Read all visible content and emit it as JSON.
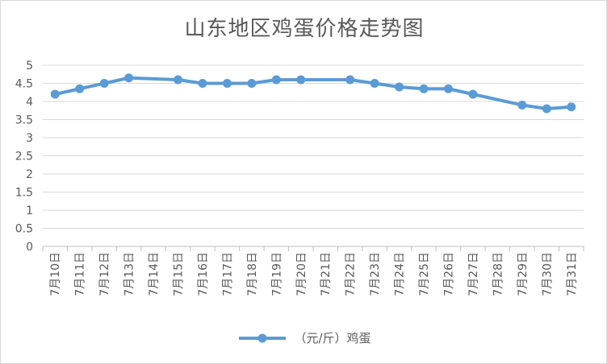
{
  "chart_data": {
    "type": "line",
    "title": "山东地区鸡蛋价格走势图",
    "categories": [
      "7月10日",
      "7月11日",
      "7月12日",
      "7月13日",
      "7月14日",
      "7月15日",
      "7月16日",
      "7月17日",
      "7月18日",
      "7月19日",
      "7月20日",
      "7月21日",
      "7月22日",
      "7月23日",
      "7月24日",
      "7月25日",
      "7月26日",
      "7月27日",
      "7月28日",
      "7月29日",
      "7月30日",
      "7月31日"
    ],
    "series": [
      {
        "name": "（元/斤）鸡蛋",
        "color": "#5b9bd5",
        "values": [
          4.2,
          4.35,
          4.5,
          4.65,
          null,
          4.6,
          4.5,
          4.5,
          4.5,
          4.6,
          4.6,
          null,
          4.6,
          4.5,
          4.4,
          4.35,
          4.35,
          4.2,
          null,
          3.9,
          3.8,
          3.85
        ]
      }
    ],
    "yticks": [
      "0",
      "0.5",
      "1",
      "1.5",
      "2",
      "2.5",
      "3",
      "3.5",
      "4",
      "4.5",
      "5"
    ],
    "ylim": [
      0,
      5
    ],
    "grid": true,
    "legend": "bottom"
  }
}
